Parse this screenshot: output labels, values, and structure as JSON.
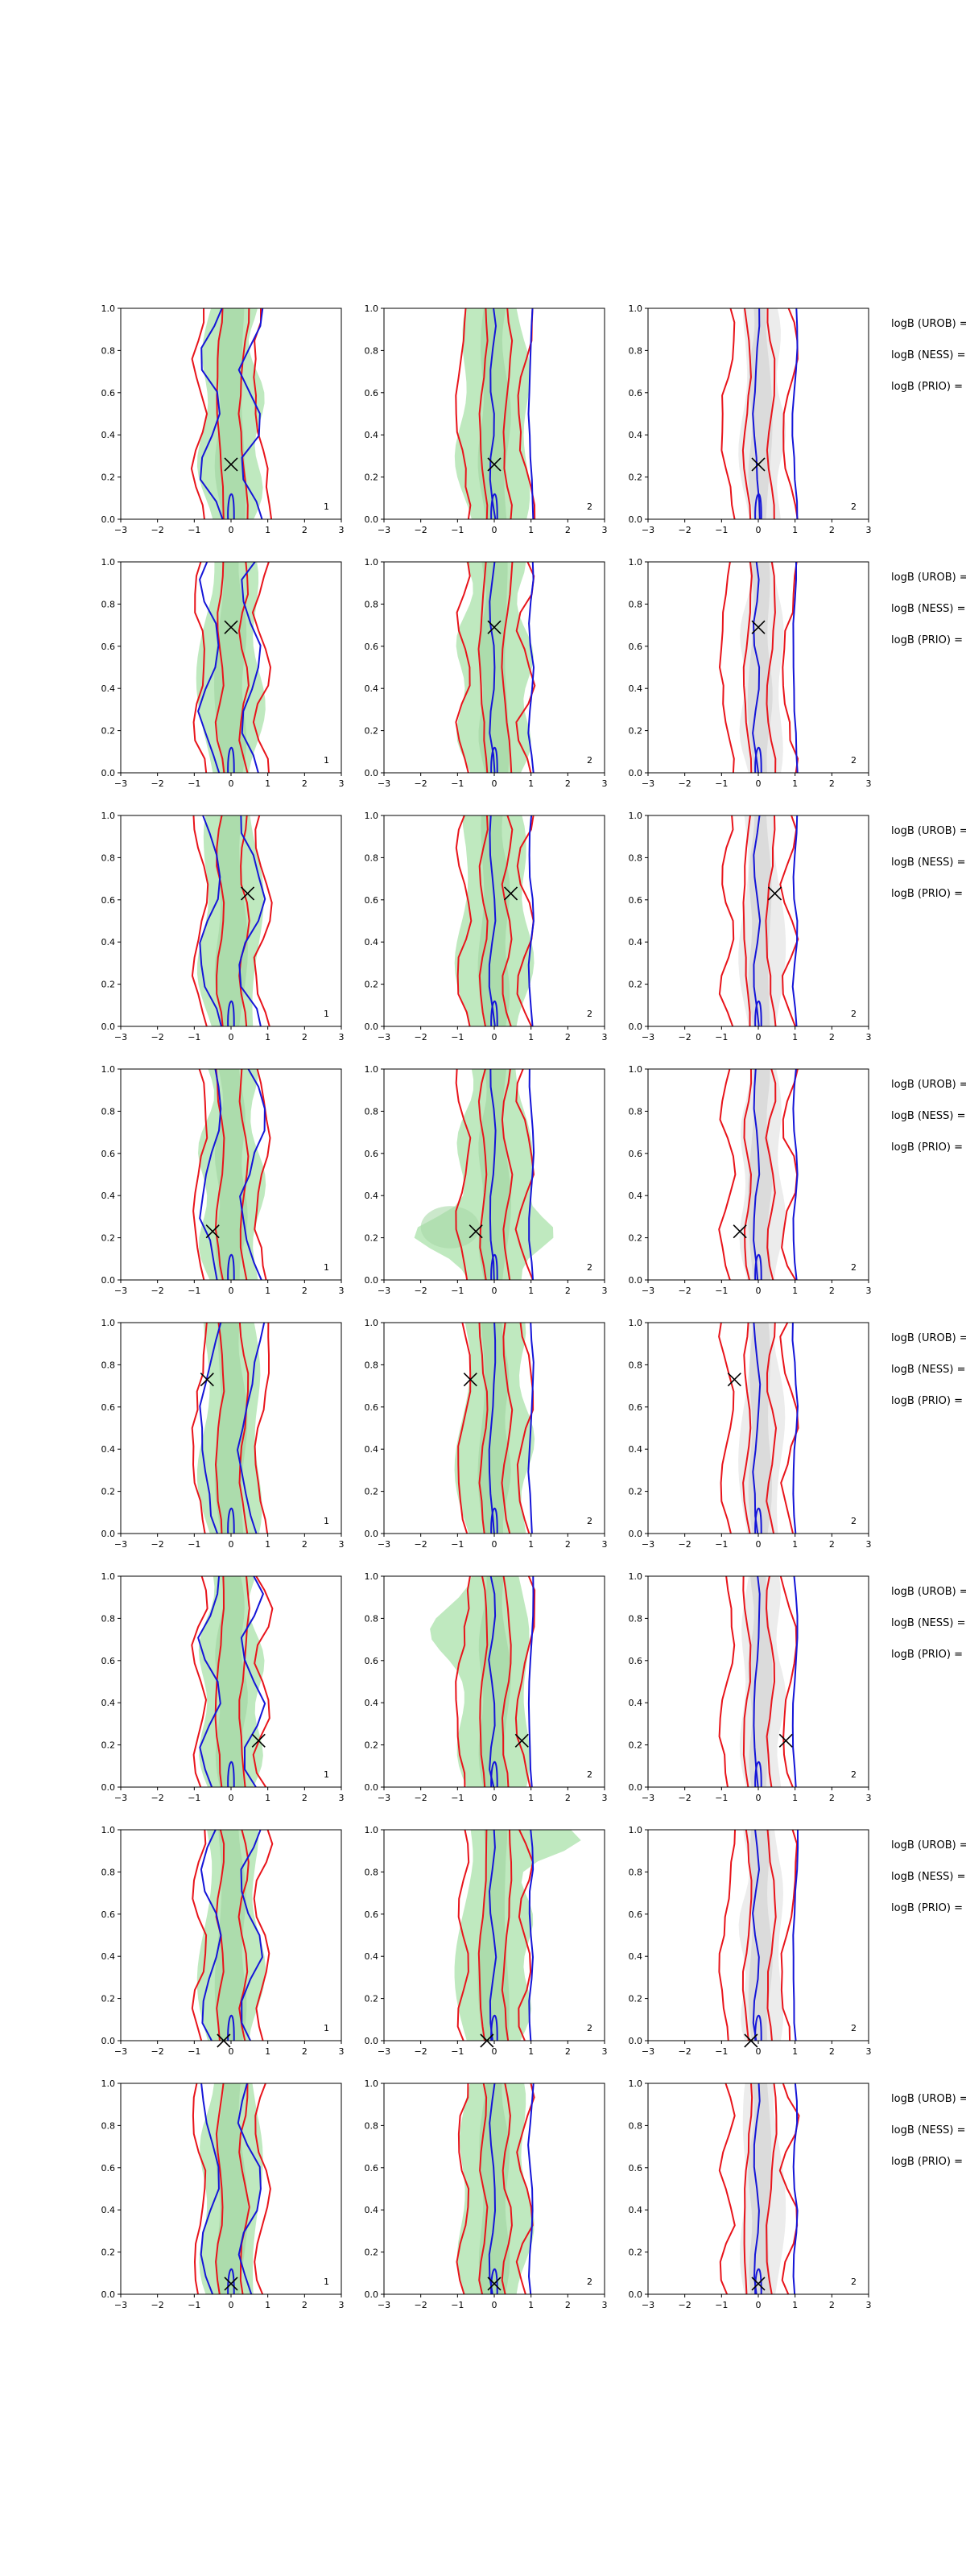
{
  "chart_data": {
    "type": "contour-grid",
    "rows": 8,
    "cols": 3,
    "x_ticks": [
      "−3",
      "−2",
      "−1",
      "0",
      "1",
      "2",
      "3"
    ],
    "y_ticks": [
      "0.0",
      "0.2",
      "0.4",
      "0.6",
      "0.8",
      "1.0"
    ],
    "xlim": [
      -3,
      3
    ],
    "ylim": [
      0,
      1
    ],
    "colors": {
      "red": "#e8141b",
      "blue": "#1515d8",
      "green_fill": "#bfe9bf",
      "green_inner": "#a8d8a8",
      "gray_fill": "#ececec",
      "gray_inner": "#c9c9c9"
    },
    "side_labels": [
      "logB (UROB) =",
      "logB (NESS) =",
      "logB (PRIO) ="
    ],
    "panel_ids": [
      "1",
      "2",
      "2"
    ],
    "markers": [
      {
        "x": 0.0,
        "y": 0.26
      },
      {
        "x": 0.0,
        "y": 0.69
      },
      {
        "x": 0.45,
        "y": 0.63
      },
      {
        "x": -0.5,
        "y": 0.23
      },
      {
        "x": -0.65,
        "y": 0.73
      },
      {
        "x": 0.75,
        "y": 0.22
      },
      {
        "x": -0.2,
        "y": 0.0
      },
      {
        "x": 0.0,
        "y": 0.05
      }
    ]
  }
}
